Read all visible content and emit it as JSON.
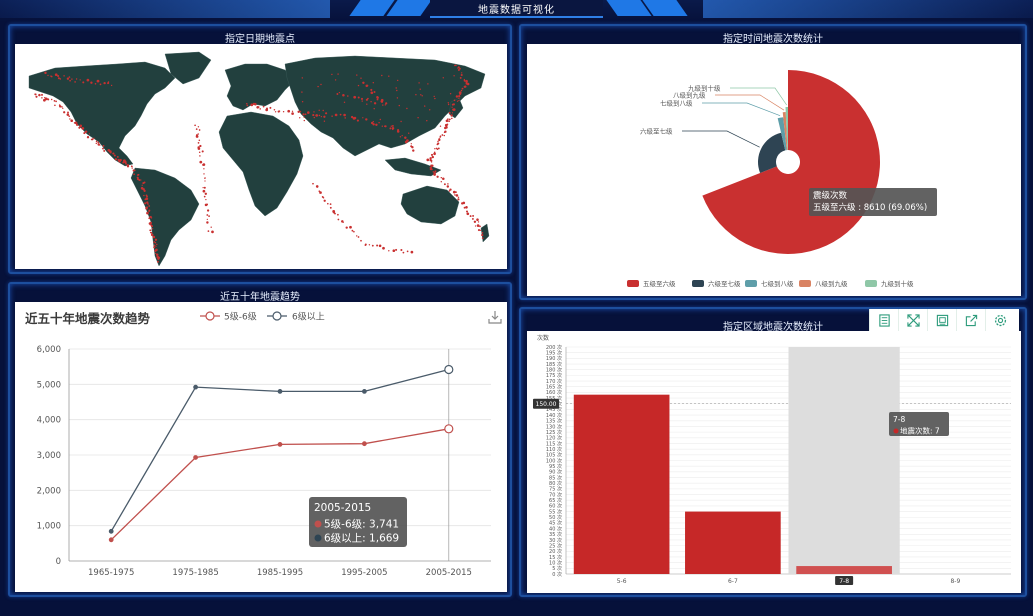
{
  "header": {
    "title": "地震数据可视化"
  },
  "panels": {
    "map": {
      "title": "指定日期地震点"
    },
    "pie": {
      "title": "指定时间地震次数统计"
    },
    "trend": {
      "title": "近五十年地震趋势"
    },
    "region": {
      "title": "指定区域地震次数统计"
    }
  },
  "pie_chart": {
    "type": "pie",
    "series_name": "震级次数",
    "slices": [
      {
        "name": "五级至六级",
        "value": 8610,
        "color": "#c93030"
      },
      {
        "name": "六级至七级",
        "value": 3400,
        "color": "#2e4453"
      },
      {
        "name": "七级到八级",
        "value": 250,
        "color": "#5e9ea9"
      },
      {
        "name": "八级到九级",
        "value": 120,
        "color": "#d98363"
      },
      {
        "name": "九级到十级",
        "value": 90,
        "color": "#8fc7a7"
      }
    ],
    "tooltip": {
      "title": "震级次数",
      "line": "五级至六级 : 8610 (69.06%)"
    },
    "legend": [
      "五级至六级",
      "六级至七级",
      "七级到八级",
      "八级到九级",
      "九级到十级"
    ]
  },
  "trend_chart": {
    "type": "line",
    "title": "近五十年地震次数趋势",
    "legend": [
      "5级-6级",
      "6级以上"
    ],
    "categories": [
      "1965-1975",
      "1975-1985",
      "1985-1995",
      "1995-2005",
      "2005-2015"
    ],
    "yticks": [
      "0",
      "1,000",
      "2,000",
      "3,000",
      "4,000",
      "5,000",
      "6,000"
    ],
    "ylim": [
      0,
      6000
    ],
    "series": [
      {
        "name": "5级-6级",
        "color": "#c0504d",
        "values": [
          600,
          2930,
          3300,
          3320,
          3741
        ]
      },
      {
        "name": "6级以上",
        "color": "#4a5b6a",
        "values": [
          840,
          4920,
          4800,
          4800,
          5420
        ]
      }
    ],
    "tooltip": {
      "title": "2005-2015",
      "rows": [
        {
          "label": "5级-6级: 3,741",
          "color": "#c0504d"
        },
        {
          "label": "6级以上: 1,669",
          "color": "#2e4453"
        }
      ]
    }
  },
  "region_chart": {
    "type": "bar",
    "ylabel": "次数",
    "categories": [
      "5-6",
      "6-7",
      "7-8",
      "8-9"
    ],
    "values": [
      158,
      55,
      7,
      0
    ],
    "ylim": [
      0,
      200
    ],
    "yticks": [
      "0 次",
      "5 次",
      "10 次",
      "15 次",
      "20 次",
      "25 次",
      "30 次",
      "35 次",
      "40 次",
      "45 次",
      "50 次",
      "55 次",
      "60 次",
      "65 次",
      "70 次",
      "75 次",
      "80 次",
      "85 次",
      "90 次",
      "95 次",
      "100 次",
      "105 次",
      "110 次",
      "115 次",
      "120 次",
      "125 次",
      "130 次",
      "135 次",
      "140 次",
      "145 次",
      "150 次",
      "155 次",
      "160 次",
      "165 次",
      "170 次",
      "175 次",
      "180 次",
      "185 次",
      "190 次",
      "195 次",
      "200 次"
    ],
    "pointer_value": "150.00",
    "highlight_category": "7-8",
    "tooltip": {
      "title": "7-8",
      "line": "地震次数: 7"
    },
    "bar_color": "#c62828",
    "toolbox": [
      "data-view-icon",
      "zoom-icon",
      "restore-icon",
      "save-image-icon",
      "settings-icon"
    ]
  }
}
